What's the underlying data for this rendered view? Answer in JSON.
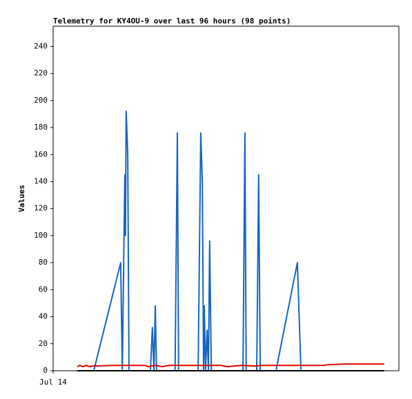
{
  "chart_data": {
    "type": "line",
    "title": "Telemetry for KY4OU-9 over last 96 hours (98 points)",
    "y_label": "Values",
    "xlim": [
      0,
      108
    ],
    "xticks": [
      {
        "value": 0,
        "label": "Jul 14"
      }
    ],
    "ylim": [
      0,
      255
    ],
    "yticks": [
      0,
      20,
      40,
      60,
      80,
      100,
      120,
      140,
      160,
      180,
      200,
      220,
      240
    ],
    "series": [
      {
        "color": "#1565c0",
        "x": [
          12.7,
          21.1,
          21.6,
          22.4,
          22.6,
          22.8,
          23.3,
          23.7,
          30.4,
          31.0,
          31.5,
          31.9,
          32.3,
          38.1,
          38.8,
          39.2,
          45.3,
          46.1,
          46.6,
          47.0,
          47.2,
          47.6,
          48.1,
          48.5,
          48.9,
          49.4,
          59.3,
          59.9,
          60.3,
          63.6,
          64.2,
          64.7,
          69.6,
          76.3,
          77.4
        ],
        "values": [
          0,
          80,
          0,
          145,
          100,
          192,
          160,
          0,
          0,
          32,
          0,
          48,
          0,
          0,
          176,
          0,
          0,
          176,
          140,
          0,
          48,
          0,
          30,
          0,
          96,
          0,
          0,
          176,
          0,
          0,
          145,
          0,
          0,
          80,
          0
        ]
      },
      {
        "color": "#e00000",
        "x": [
          7.5,
          8.2,
          9.3,
          10.3,
          11.4,
          12.5,
          19.0,
          28.7,
          29.7,
          31.9,
          34.1,
          36.2,
          52.4,
          54.5,
          58.8,
          63.1,
          65.3,
          84.7,
          85.8,
          91.2,
          103.4
        ],
        "values": [
          3,
          4,
          3,
          4,
          3,
          3.5,
          4,
          4,
          3,
          4,
          3,
          4,
          4,
          3,
          4,
          3.5,
          4,
          4,
          4.5,
          5,
          5
        ]
      },
      {
        "color": "#000000",
        "x": [
          7.5,
          103.4
        ],
        "values": [
          0,
          0
        ]
      }
    ]
  }
}
